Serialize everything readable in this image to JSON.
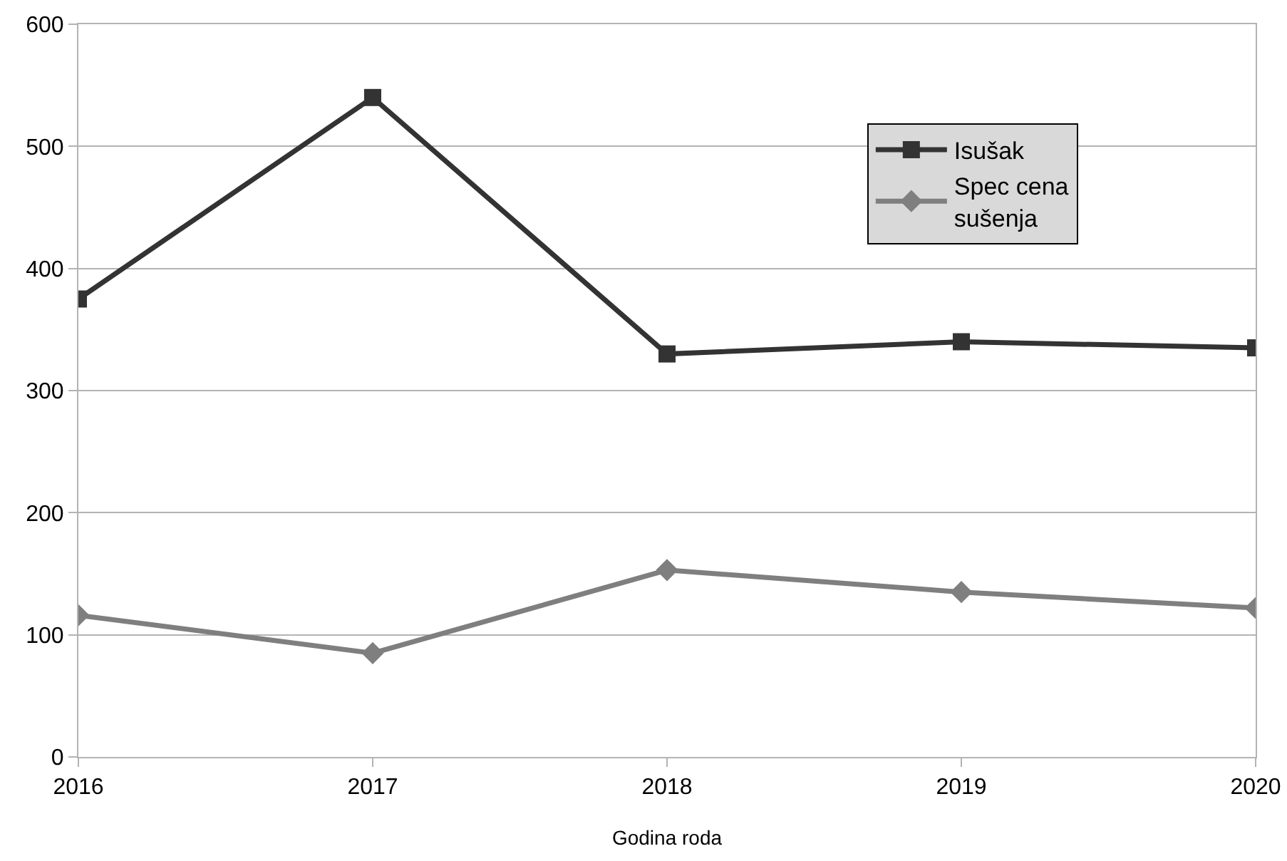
{
  "chart_data": {
    "type": "line",
    "xlabel": "Godina roda",
    "x": [
      2016,
      2017,
      2018,
      2019,
      2020
    ],
    "xlim": [
      2016,
      2020
    ],
    "xticks": [
      2016,
      2017,
      2018,
      2019,
      2020
    ],
    "ylim": [
      0,
      600
    ],
    "yticks": [
      0,
      100,
      200,
      300,
      400,
      500,
      600
    ],
    "grid": "y",
    "legend": "top right",
    "line_style": "solid",
    "series": [
      {
        "name": "Isušak",
        "color": "#333333",
        "marker": "square",
        "values": [
          375,
          540,
          330,
          340,
          335
        ]
      },
      {
        "name": "Spec cena sušenja",
        "color": "#7f7f7f",
        "marker": "diamond",
        "values": [
          116,
          85,
          153,
          135,
          122
        ]
      }
    ]
  }
}
